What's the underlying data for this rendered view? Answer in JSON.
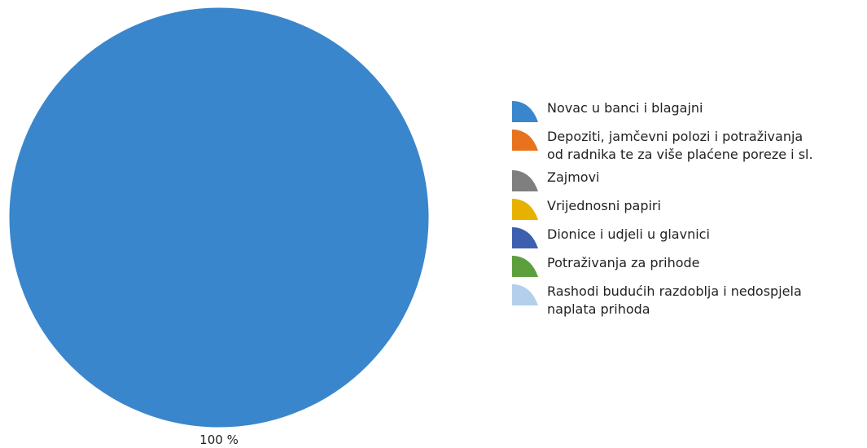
{
  "chart_data": {
    "type": "pie",
    "title": "",
    "legend_position": "right",
    "slices": [
      {
        "label": "Novac u banci i blagajni",
        "value": 100,
        "color": "#3A86CC"
      },
      {
        "label": "Depoziti, jamčevni polozi i potraživanja\nod radnika te za više plaćene poreze i sl.",
        "value": 0,
        "color": "#E8731E"
      },
      {
        "label": "Zajmovi",
        "value": 0,
        "color": "#7F7F7F"
      },
      {
        "label": "Vrijednosni papiri",
        "value": 0,
        "color": "#E6B100"
      },
      {
        "label": "Dionice i udjeli u glavnici",
        "value": 0,
        "color": "#3D5FB0"
      },
      {
        "label": "Potraživanja za prihode",
        "value": 0,
        "color": "#5C9F3D"
      },
      {
        "label": "Rashodi budućih razdoblja i nedospjela\nnaplata prihoda",
        "value": 0,
        "color": "#B3CFEC"
      }
    ],
    "data_labels": [
      "100 %"
    ]
  }
}
